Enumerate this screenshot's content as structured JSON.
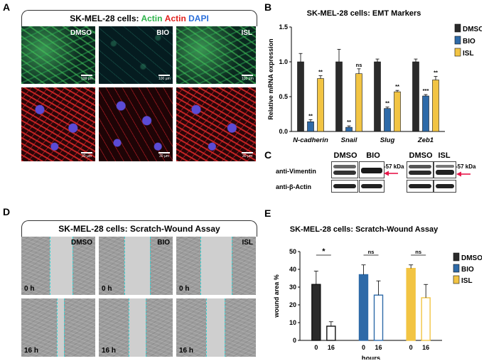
{
  "panels": {
    "a": "A",
    "b": "B",
    "c": "C",
    "d": "D",
    "e": "E"
  },
  "panel_a": {
    "banner_prefix": "SK-MEL-28 cells: ",
    "banner_actin_green": "Actin",
    "banner_actin_red": "Actin",
    "banner_dapi": "DAPI",
    "colors": {
      "green": "#2db34a",
      "red": "#e0201c",
      "blue": "#2a6fdb"
    },
    "labels": [
      "DMSO",
      "BIO",
      "ISL"
    ],
    "scale_top": "100 µm",
    "scale_bottom": "30 µm"
  },
  "panel_c": {
    "headers": [
      "DMSO",
      "BIO",
      "DMSO",
      "ISL"
    ],
    "row1": "anti-Vimentin",
    "row2": "anti-β-Actin",
    "kda": "-57 kDa",
    "arrow_color": "#e8174a"
  },
  "panel_d": {
    "banner": "SK-MEL-28 cells: Scratch-Wound Assay",
    "labels": [
      "DMSO",
      "BIO",
      "ISL"
    ],
    "time_top": "0 h",
    "time_bottom": "16 h"
  },
  "chart_data": [
    {
      "type": "bar",
      "title": "SK-MEL-28 cells: EMT Markers",
      "ylabel": "Relative mRNA expression",
      "ylim": [
        0,
        1.5
      ],
      "yticks": [
        "0.0",
        "0.5",
        "1.0",
        "1.5"
      ],
      "categories": [
        "N-cadherin",
        "Snail",
        "Slug",
        "Zeb1"
      ],
      "series": [
        {
          "name": "DMSO",
          "color": "#2b2b2b",
          "values": [
            1.0,
            1.0,
            1.0,
            1.0
          ],
          "err": [
            0.12,
            0.18,
            0.04,
            0.04
          ],
          "sig": [
            "",
            "",
            "",
            ""
          ]
        },
        {
          "name": "BIO",
          "color": "#2e6aa8",
          "values": [
            0.14,
            0.06,
            0.33,
            0.51
          ],
          "err": [
            0.03,
            0.02,
            0.02,
            0.02
          ],
          "sig": [
            "**",
            "**",
            "**",
            "***"
          ]
        },
        {
          "name": "ISL",
          "color": "#f2c443",
          "values": [
            0.76,
            0.83,
            0.57,
            0.74
          ],
          "err": [
            0.04,
            0.07,
            0.02,
            0.05
          ],
          "sig": [
            "**",
            "ns",
            "**",
            "**"
          ]
        }
      ],
      "legend": "top-right"
    },
    {
      "type": "bar",
      "title": "SK-MEL-28 cells: Scratch-Wound Assay",
      "ylabel": "wound area %",
      "xlabel": "hours",
      "ylim": [
        0,
        50
      ],
      "yticks": [
        "0",
        "10",
        "20",
        "30",
        "40",
        "50"
      ],
      "groups": [
        {
          "name": "DMSO",
          "color": "#2b2b2b",
          "x": [
            "0",
            "16"
          ],
          "values": [
            31.5,
            8.0
          ],
          "err": [
            7.5,
            2.5
          ],
          "sig": "*"
        },
        {
          "name": "BIO",
          "color": "#2e6aa8",
          "x": [
            "0",
            "16"
          ],
          "values": [
            37.0,
            25.5
          ],
          "err": [
            5.5,
            8.0
          ],
          "sig": "ns"
        },
        {
          "name": "ISL",
          "color": "#f2c443",
          "x": [
            "0",
            "16"
          ],
          "values": [
            40.5,
            24.0
          ],
          "err": [
            2.0,
            7.5
          ],
          "sig": "ns"
        }
      ],
      "legend": "top-right"
    }
  ]
}
